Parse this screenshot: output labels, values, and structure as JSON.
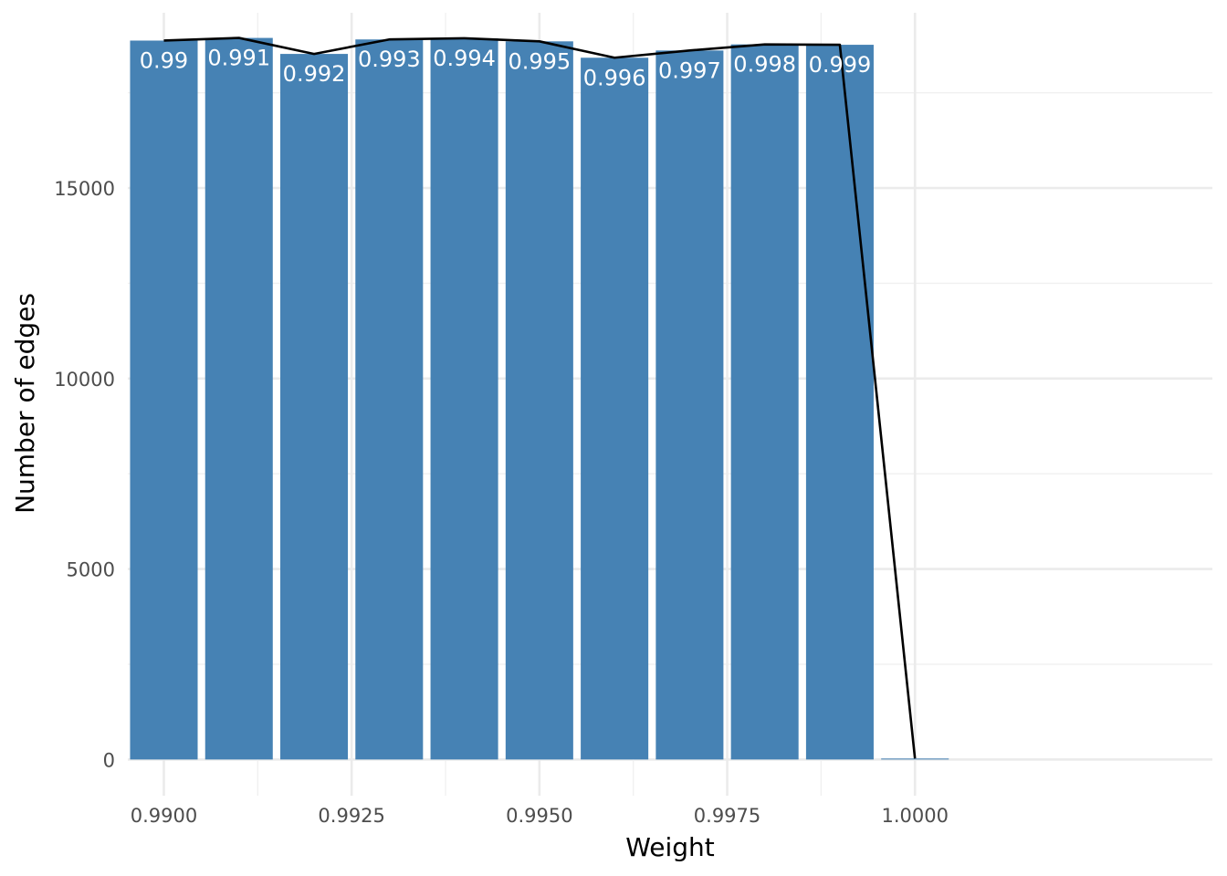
{
  "chart_data": {
    "type": "bar",
    "xlabel": "Weight",
    "ylabel": "Number of edges",
    "xlim": [
      0.98952,
      1.00396
    ],
    "ylim": [
      -950,
      19600
    ],
    "x_ticks": [
      0.99,
      0.9925,
      0.995,
      0.9975,
      1.0
    ],
    "x_tick_labels": [
      "0.9900",
      "0.9925",
      "0.9950",
      "0.9975",
      "1.0000"
    ],
    "y_ticks": [
      0,
      5000,
      10000,
      15000
    ],
    "y_tick_labels": [
      "0",
      "5000",
      "10000",
      "15000"
    ],
    "grid": true,
    "bar_width": 0.0009,
    "bar_color": "#4682b4",
    "line_color": "#000000",
    "label_color": "#ffffff",
    "bars": [
      {
        "x": 0.99,
        "value": 18870,
        "label": "0.99"
      },
      {
        "x": 0.991,
        "value": 18940,
        "label": "0.991"
      },
      {
        "x": 0.992,
        "value": 18520,
        "label": "0.992"
      },
      {
        "x": 0.993,
        "value": 18900,
        "label": "0.993"
      },
      {
        "x": 0.994,
        "value": 18930,
        "label": "0.994"
      },
      {
        "x": 0.995,
        "value": 18850,
        "label": "0.995"
      },
      {
        "x": 0.996,
        "value": 18420,
        "label": "0.996"
      },
      {
        "x": 0.997,
        "value": 18610,
        "label": "0.997"
      },
      {
        "x": 0.998,
        "value": 18770,
        "label": "0.998"
      },
      {
        "x": 0.999,
        "value": 18760,
        "label": "0.999"
      },
      {
        "x": 1.0,
        "value": 25,
        "label": ""
      }
    ]
  }
}
